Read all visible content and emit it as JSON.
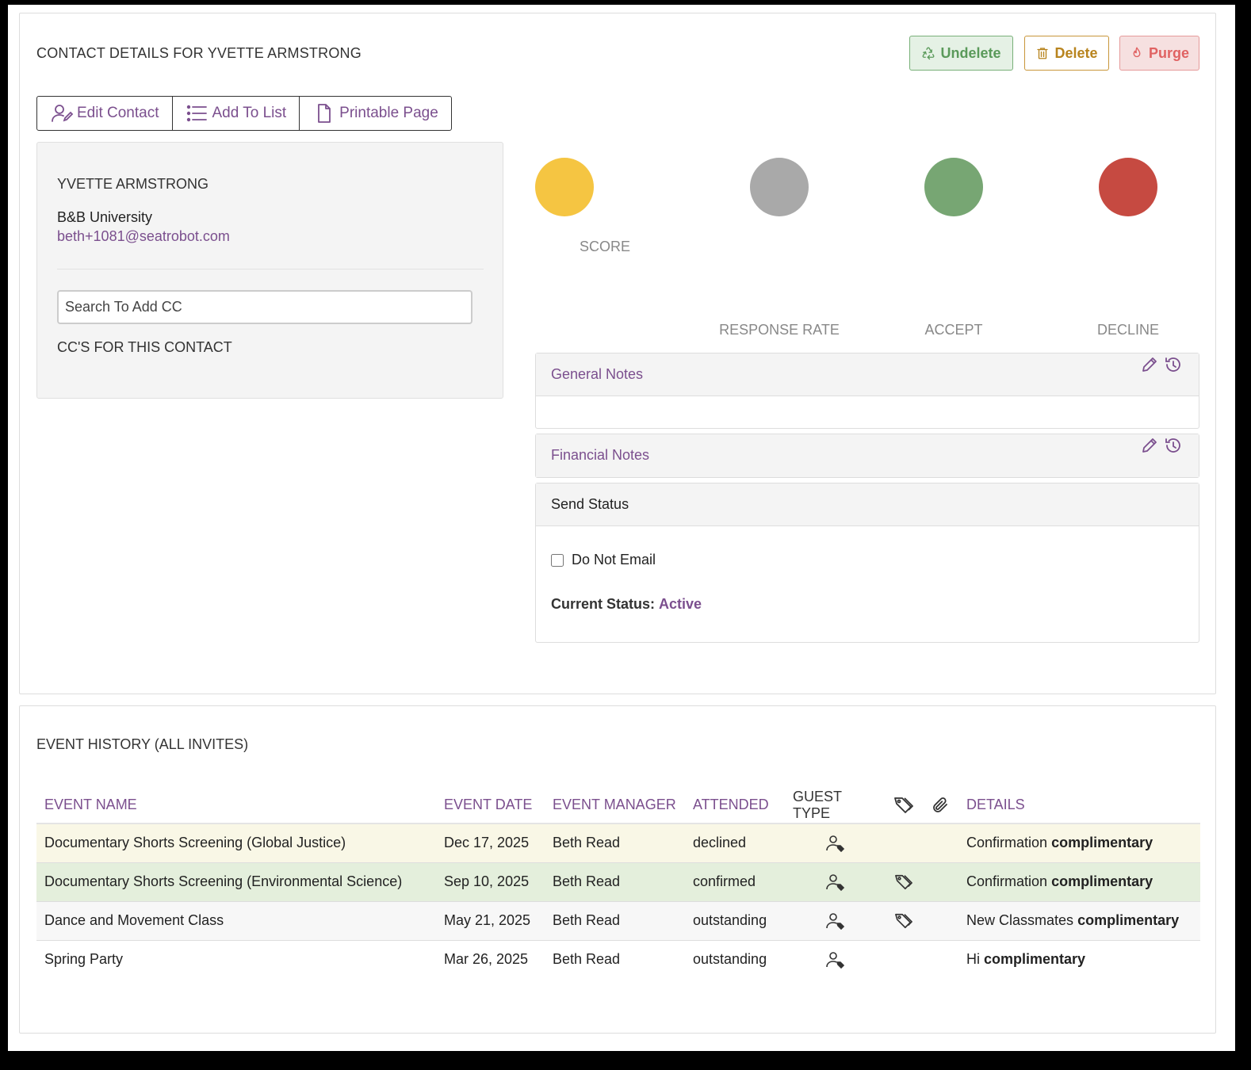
{
  "header": {
    "title": "CONTACT DETAILS FOR YVETTE ARMSTRONG",
    "undelete_label": "Undelete",
    "delete_label": "Delete",
    "purge_label": "Purge"
  },
  "toolbar": {
    "edit_contact": "Edit Contact",
    "add_to_list": "Add To List",
    "printable_page": "Printable Page"
  },
  "contact": {
    "name": "YVETTE ARMSTRONG",
    "organization": "B&B University",
    "email": "beth+1081@seatrobot.com",
    "cc_placeholder": "Search To Add CC",
    "cc_label": "CC'S FOR THIS CONTACT"
  },
  "stats": {
    "score_label": "SCORE",
    "response_rate_label": "RESPONSE RATE",
    "accept_label": "ACCEPT",
    "decline_label": "DECLINE",
    "colors": {
      "score": "#f5c542",
      "response_rate": "#a9a9a9",
      "accept": "#77a673",
      "decline": "#c64a41"
    }
  },
  "notes": {
    "general_title": "General Notes",
    "financial_title": "Financial Notes",
    "send_status_title": "Send Status",
    "do_not_email_label": "Do Not Email",
    "current_status_label": "Current Status:",
    "current_status_value": "Active"
  },
  "event_history": {
    "title": "EVENT HISTORY (ALL INVITES)",
    "columns": {
      "event_name": "EVENT NAME",
      "event_date": "EVENT DATE",
      "event_manager": "EVENT MANAGER",
      "attended": "ATTENDED",
      "guest_type": "GUEST TYPE",
      "details": "DETAILS"
    },
    "rows": [
      {
        "name": "Documentary Shorts Screening (Global Justice)",
        "date": "Dec 17, 2025",
        "manager": "Beth Read",
        "attended": "declined",
        "details_text": "Confirmation",
        "details_bold": "complimentary",
        "has_tag": false
      },
      {
        "name": "Documentary Shorts Screening (Environmental Science)",
        "date": "Sep 10, 2025",
        "manager": "Beth Read",
        "attended": "confirmed",
        "details_text": "Confirmation",
        "details_bold": "complimentary",
        "has_tag": true
      },
      {
        "name": "Dance and Movement Class",
        "date": "May 21, 2025",
        "manager": "Beth Read",
        "attended": "outstanding",
        "details_text": "New Classmates",
        "details_bold": "complimentary",
        "has_tag": true
      },
      {
        "name": "Spring Party",
        "date": "Mar 26, 2025",
        "manager": "Beth Read",
        "attended": "outstanding",
        "details_text": "Hi",
        "details_bold": "complimentary",
        "has_tag": false
      }
    ]
  }
}
